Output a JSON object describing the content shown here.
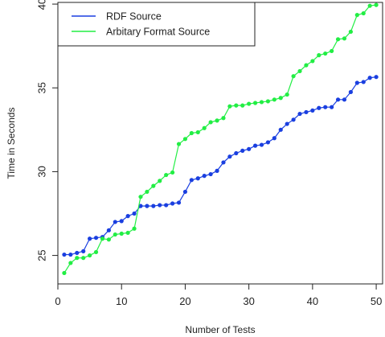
{
  "chart_data": {
    "type": "line",
    "title": "",
    "xlabel": "Number of Tests",
    "ylabel": "Time in Seconds",
    "xlim": [
      0,
      51
    ],
    "ylim": [
      23.3,
      40.1
    ],
    "xticks": [
      0,
      10,
      20,
      30,
      40,
      50
    ],
    "yticks": [
      25,
      30,
      35,
      40
    ],
    "grid": false,
    "legend_position": "top-left",
    "x": [
      1,
      2,
      3,
      4,
      5,
      6,
      7,
      8,
      9,
      10,
      11,
      12,
      13,
      14,
      15,
      16,
      17,
      18,
      19,
      20,
      21,
      22,
      23,
      24,
      25,
      26,
      27,
      28,
      29,
      30,
      31,
      32,
      33,
      34,
      35,
      36,
      37,
      38,
      39,
      40,
      41,
      42,
      43,
      44,
      45,
      46,
      47,
      48,
      49,
      50
    ],
    "series": [
      {
        "name": "RDF Source",
        "color": "#1a3fe0",
        "values": [
          25.05,
          25.05,
          25.15,
          25.25,
          26.0,
          26.05,
          26.1,
          26.5,
          27.0,
          27.05,
          27.35,
          27.5,
          27.95,
          27.95,
          27.95,
          28.0,
          28.0,
          28.1,
          28.15,
          28.8,
          29.5,
          29.6,
          29.75,
          29.85,
          30.05,
          30.55,
          30.9,
          31.1,
          31.25,
          31.35,
          31.55,
          31.6,
          31.75,
          32.0,
          32.5,
          32.85,
          33.1,
          33.45,
          33.55,
          33.65,
          33.8,
          33.85,
          33.85,
          34.3,
          34.3,
          34.75,
          35.3,
          35.35,
          35.6,
          35.65
        ]
      },
      {
        "name": "Arbitary Format Source",
        "color": "#22ee44",
        "values": [
          23.95,
          24.55,
          24.85,
          24.85,
          25.0,
          25.2,
          26.0,
          25.95,
          26.25,
          26.3,
          26.35,
          26.6,
          28.5,
          28.8,
          29.15,
          29.45,
          29.8,
          29.95,
          31.65,
          31.95,
          32.3,
          32.35,
          32.6,
          32.95,
          33.05,
          33.2,
          33.9,
          33.95,
          33.95,
          34.05,
          34.1,
          34.15,
          34.2,
          34.3,
          34.4,
          34.6,
          35.7,
          36.0,
          36.35,
          36.6,
          36.95,
          37.05,
          37.2,
          37.9,
          37.95,
          38.35,
          39.35,
          39.45,
          39.9,
          39.95
        ]
      }
    ]
  }
}
